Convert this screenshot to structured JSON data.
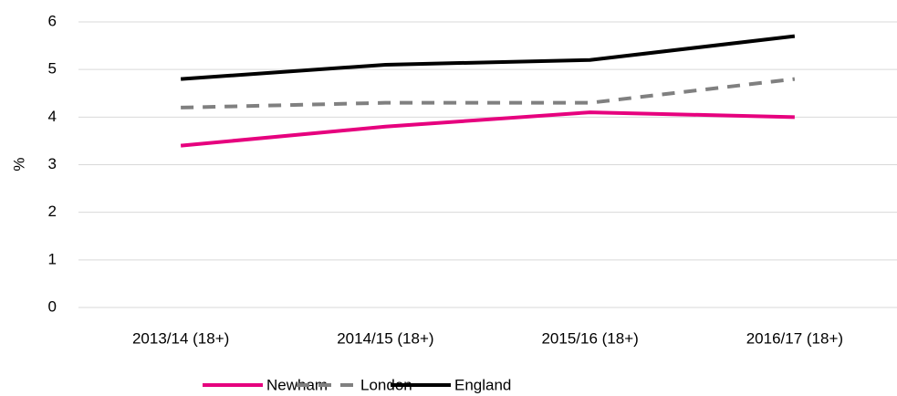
{
  "chart_data": {
    "type": "line",
    "y_label": "%",
    "categories": [
      "2013/14 (18+)",
      "2014/15 (18+)",
      "2015/16 (18+)",
      "2016/17 (18+)"
    ],
    "series": [
      {
        "name": "Newham",
        "color": "#e6007e",
        "dash": false,
        "values": [
          3.4,
          3.8,
          4.1,
          4.0
        ]
      },
      {
        "name": "London",
        "color": "#808080",
        "dash": true,
        "values": [
          4.2,
          4.3,
          4.3,
          4.8
        ]
      },
      {
        "name": "England",
        "color": "#000000",
        "dash": false,
        "values": [
          4.8,
          5.1,
          5.2,
          5.7
        ]
      }
    ],
    "ylim": [
      0,
      6
    ],
    "yticks": [
      0,
      1,
      2,
      3,
      4,
      5,
      6
    ],
    "grid": true,
    "legend": "bottom"
  }
}
